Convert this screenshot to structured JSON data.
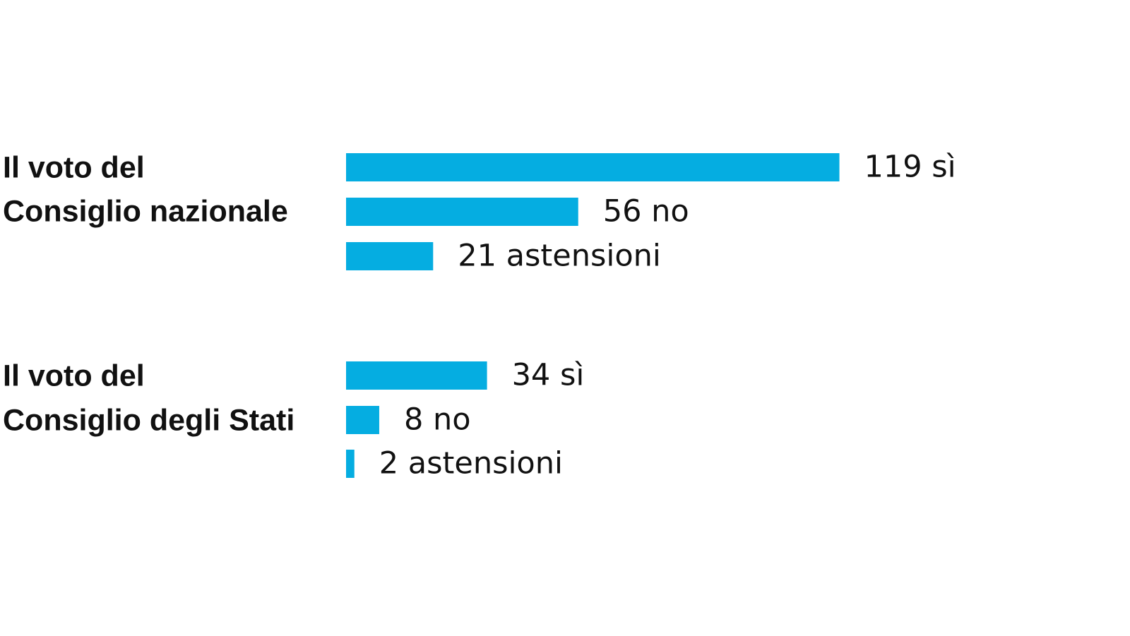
{
  "chart_data": {
    "type": "bar",
    "orientation": "horizontal",
    "color": "#05ADE1",
    "groups": [
      {
        "title_lines": [
          "Il voto del",
          "Consiglio nazionale"
        ],
        "bars": [
          {
            "category": "sì",
            "value": 119,
            "label": "119 sì"
          },
          {
            "category": "no",
            "value": 56,
            "label": "56 no"
          },
          {
            "category": "astensioni",
            "value": 21,
            "label": "21 astensioni"
          }
        ]
      },
      {
        "title_lines": [
          "Il voto del",
          "Consiglio degli Stati"
        ],
        "bars": [
          {
            "category": "sì",
            "value": 34,
            "label": "34 sì"
          },
          {
            "category": "no",
            "value": 8,
            "label": "8 no"
          },
          {
            "category": "astensioni",
            "value": 2,
            "label": "2 astensioni"
          }
        ]
      }
    ]
  }
}
